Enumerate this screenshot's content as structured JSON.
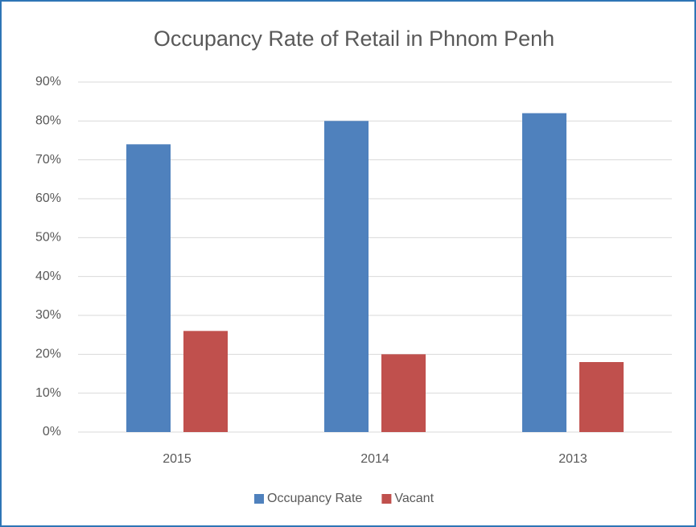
{
  "chart_data": {
    "type": "bar",
    "title": "Occupancy Rate of Retail in Phnom Penh",
    "categories": [
      "2015",
      "2014",
      "2013"
    ],
    "series": [
      {
        "name": "Occupancy Rate",
        "color": "#4f81bd",
        "values": [
          74,
          80,
          82
        ]
      },
      {
        "name": "Vacant",
        "color": "#c0504d",
        "values": [
          26,
          20,
          18
        ]
      }
    ],
    "ylim": [
      0,
      90
    ],
    "yticks": [
      {
        "value": 0,
        "label": "0%"
      },
      {
        "value": 10,
        "label": "10%"
      },
      {
        "value": 20,
        "label": "20%"
      },
      {
        "value": 30,
        "label": "30%"
      },
      {
        "value": 40,
        "label": "40%"
      },
      {
        "value": 50,
        "label": "50%"
      },
      {
        "value": 60,
        "label": "60%"
      },
      {
        "value": 70,
        "label": "70%"
      },
      {
        "value": 80,
        "label": "80%"
      },
      {
        "value": 90,
        "label": "90%"
      }
    ],
    "grid": true,
    "legend": "bottom"
  }
}
